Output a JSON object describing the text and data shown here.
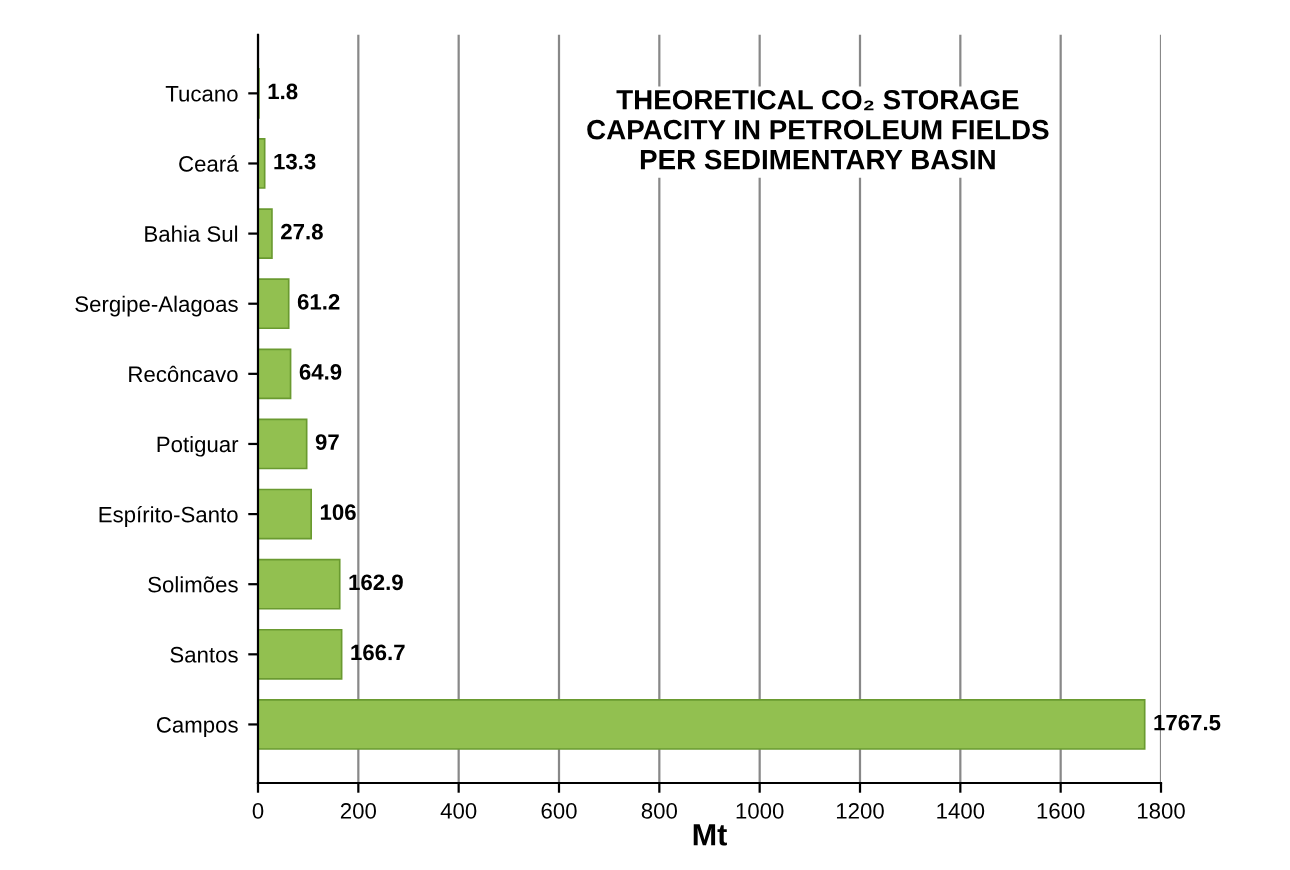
{
  "chart_data": {
    "type": "bar",
    "orientation": "horizontal",
    "title": "THEORETICAL CO₂ STORAGE\nCAPACITY IN PETROLEUM FIELDS\nPER SEDIMENTARY BASIN",
    "xlabel": "Mt",
    "categories": [
      "Tucano",
      "Ceará",
      "Bahia Sul",
      "Sergipe-Alagoas",
      "Recôncavo",
      "Potiguar",
      "Espírito-Santo",
      "Solimões",
      "Santos",
      "Campos"
    ],
    "values": [
      1.8,
      13.3,
      27.8,
      61.2,
      64.9,
      97,
      106,
      162.9,
      166.7,
      1767.5
    ],
    "color": "#92c050",
    "xlim": [
      0,
      1800
    ],
    "xticks": [
      0,
      200,
      400,
      600,
      800,
      1000,
      1200,
      1400,
      1600,
      1800
    ],
    "grid": "x",
    "data_labels": true
  }
}
